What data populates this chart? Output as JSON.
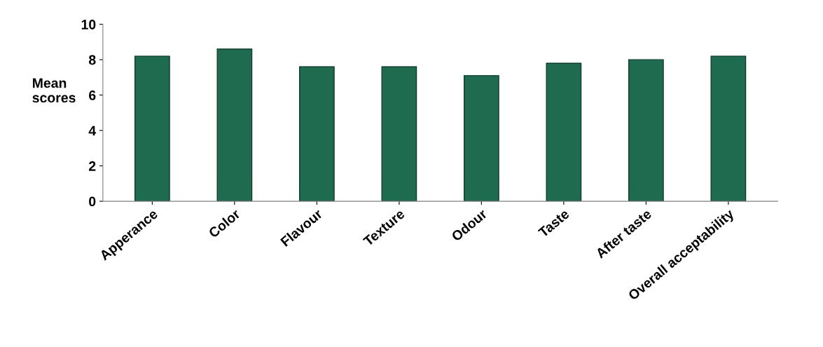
{
  "chart_data": {
    "type": "bar",
    "ylabel": "Mean scores",
    "categories": [
      "Apperance",
      "Color",
      "Flavour",
      "Texture",
      "Odour",
      "Taste",
      "After taste",
      "Overall acceptability"
    ],
    "values": [
      8.2,
      8.6,
      7.6,
      7.6,
      7.1,
      7.8,
      8.0,
      8.2
    ],
    "color": "#1e6b50",
    "ylim": [
      0,
      10
    ],
    "yticks": [
      0,
      2,
      4,
      6,
      8,
      10
    ],
    "grid": false,
    "legend": false
  }
}
